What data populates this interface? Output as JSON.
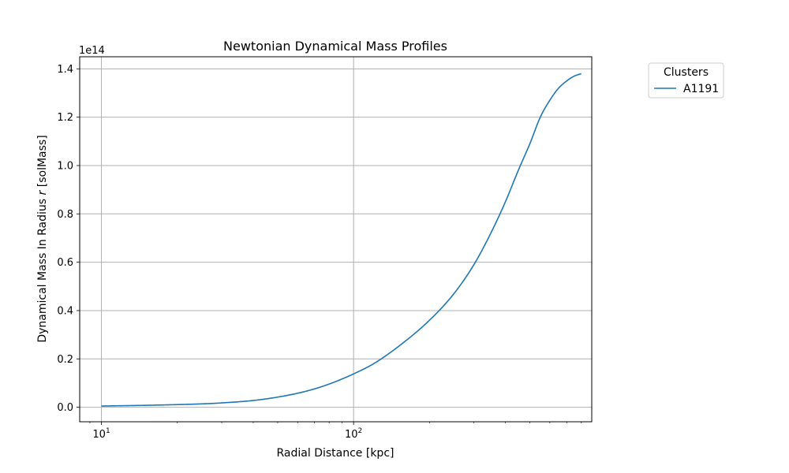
{
  "chart_data": {
    "type": "line",
    "title": "Newtonian Dynamical Mass Profiles",
    "xlabel": "Radial Distance [kpc]",
    "ylabel_prefix": "Dynamical Mass In Radius ",
    "ylabel_var": "r",
    "ylabel_suffix": " [solMass]",
    "y_offset_label": "1e14",
    "xscale": "log",
    "xlim": [
      8.2,
      880
    ],
    "ylim": [
      -0.06,
      1.45
    ],
    "x_ticks": [
      {
        "value": 10,
        "base": "10",
        "exp": "1"
      },
      {
        "value": 100,
        "base": "10",
        "exp": "2"
      }
    ],
    "y_ticks": [
      0.0,
      0.2,
      0.4,
      0.6,
      0.8,
      1.0,
      1.2,
      1.4
    ],
    "y_tick_labels": [
      "0.0",
      "0.2",
      "0.4",
      "0.6",
      "0.8",
      "1.0",
      "1.2",
      "1.4"
    ],
    "grid": true,
    "legend": {
      "title": "Clusters",
      "placement": "outside-top-right"
    },
    "series": [
      {
        "name": "A1191",
        "color": "#1f77b4",
        "x": [
          10,
          15,
          20,
          25,
          30,
          40,
          50,
          60,
          70,
          80,
          90,
          100,
          120,
          150,
          200,
          250,
          300,
          350,
          400,
          450,
          500,
          550,
          600,
          650,
          700,
          750,
          800
        ],
        "y": [
          0.005,
          0.008,
          0.011,
          0.014,
          0.018,
          0.028,
          0.042,
          0.058,
          0.076,
          0.096,
          0.117,
          0.138,
          0.18,
          0.25,
          0.36,
          0.47,
          0.59,
          0.72,
          0.85,
          0.98,
          1.09,
          1.2,
          1.27,
          1.32,
          1.35,
          1.37,
          1.38
        ]
      }
    ]
  }
}
